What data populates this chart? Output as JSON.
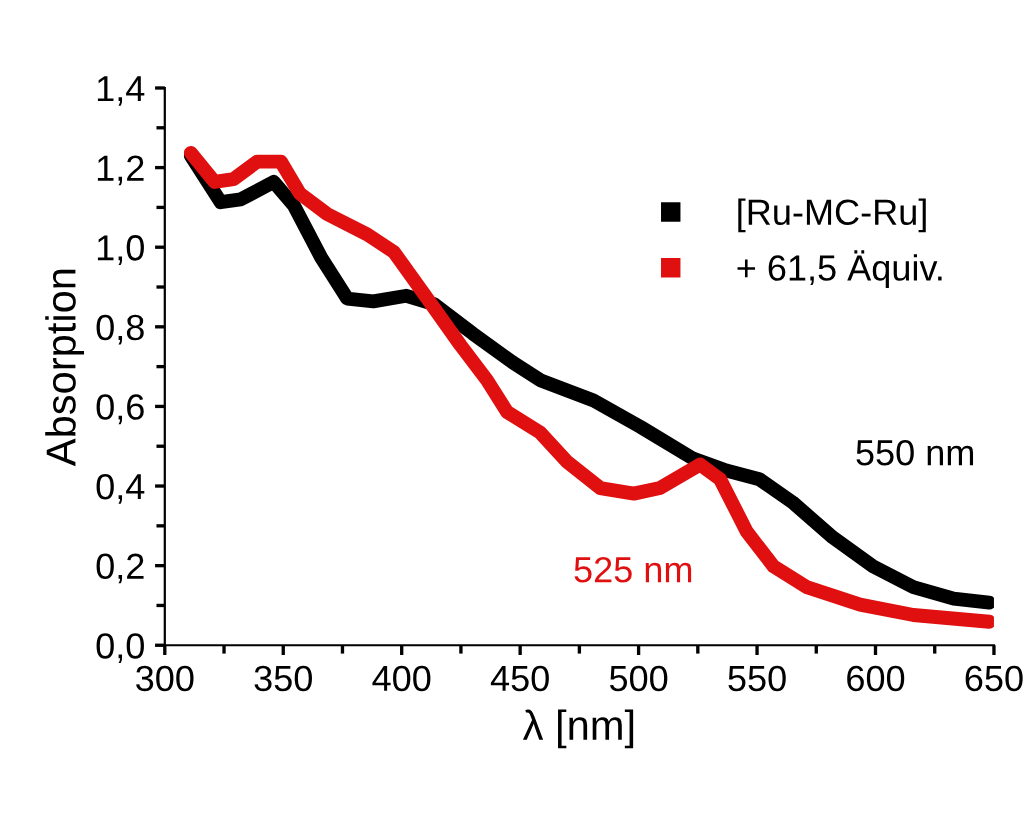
{
  "chart_data": {
    "type": "line",
    "xlabel": "λ [nm]",
    "ylabel": "Absorption",
    "xlim": [
      300,
      650
    ],
    "xticks": [
      300,
      350,
      400,
      450,
      500,
      550,
      600,
      650
    ],
    "ylim": [
      0,
      1.4
    ],
    "yticks": [
      {
        "value": 0,
        "label": "0,0"
      },
      {
        "value": 0.2,
        "label": "0,2"
      },
      {
        "value": 0.4,
        "label": "0,4"
      },
      {
        "value": 0.6,
        "label": "0,6"
      },
      {
        "value": 0.8,
        "label": "0,8"
      },
      {
        "value": 1.0,
        "label": "1,0"
      },
      {
        "value": 1.2,
        "label": "1,2"
      },
      {
        "value": 1.4,
        "label": "1,4"
      }
    ],
    "grid": false,
    "legend": "top right",
    "marker": "none",
    "line_style": "solid",
    "series": [
      {
        "name": "[Ru-MC-Ru]",
        "color": "#000000",
        "x": [
          311,
          323.6,
          332,
          346,
          354.5,
          366,
          377,
          388,
          402,
          413.6,
          430,
          447,
          458.5,
          481,
          500.7,
          523,
          537,
          551,
          565,
          582,
          599,
          616,
          633,
          648
        ],
        "values": [
          1.23,
          1.113,
          1.12,
          1.164,
          1.105,
          0.974,
          0.871,
          0.864,
          0.878,
          0.857,
          0.783,
          0.71,
          0.666,
          0.615,
          0.549,
          0.469,
          0.439,
          0.417,
          0.359,
          0.271,
          0.198,
          0.146,
          0.117,
          0.107
        ]
      },
      {
        "name": "+ 61,5 Äquiv.",
        "color": "#e01010",
        "x": [
          311,
          321,
          329,
          339,
          349,
          357,
          368.6,
          385.5,
          396.7,
          410.8,
          424.8,
          436,
          444.5,
          458.5,
          469.8,
          483.8,
          498,
          509,
          526,
          534.4,
          545.7,
          557,
          571,
          593.5,
          616,
          648
        ],
        "values": [
          1.237,
          1.164,
          1.171,
          1.215,
          1.215,
          1.135,
          1.083,
          1.032,
          0.988,
          0.871,
          0.754,
          0.666,
          0.586,
          0.534,
          0.461,
          0.395,
          0.381,
          0.395,
          0.454,
          0.417,
          0.285,
          0.198,
          0.146,
          0.102,
          0.076,
          0.059
        ]
      }
    ],
    "annotations": [
      "550 nm",
      "525 nm"
    ]
  }
}
